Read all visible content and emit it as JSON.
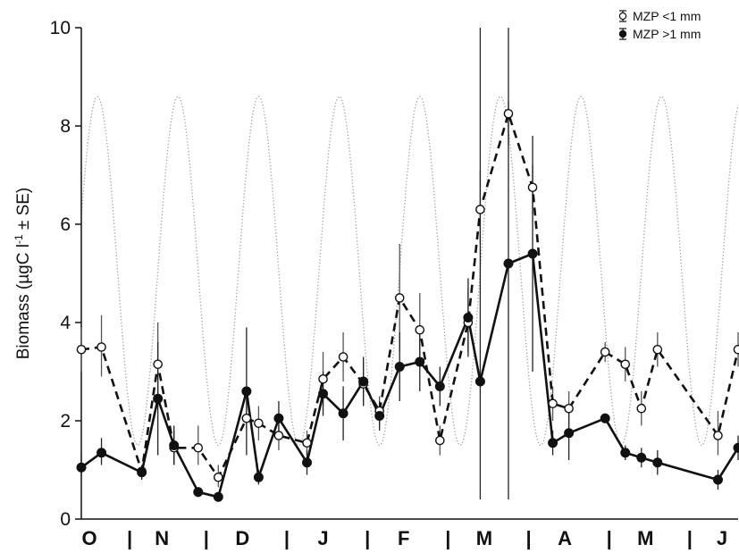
{
  "chart_data": {
    "type": "line",
    "ylabel_main": "Biomass (µgC l",
    "ylabel_sup": "-1",
    "ylabel_tail": " ± SE)",
    "ylim": [
      0,
      10
    ],
    "yticks": [
      "0",
      "2",
      "4",
      "6",
      "8",
      "10"
    ],
    "xlim": [
      0,
      8.15
    ],
    "month_labels": [
      {
        "label": "O",
        "x": 0.1
      },
      {
        "label": "N",
        "x": 1.0
      },
      {
        "label": "D",
        "x": 2.0
      },
      {
        "label": "J",
        "x": 3.0
      },
      {
        "label": "F",
        "x": 4.0
      },
      {
        "label": "M",
        "x": 5.0
      },
      {
        "label": "A",
        "x": 6.0
      },
      {
        "label": "M",
        "x": 7.0
      },
      {
        "label": "J",
        "x": 7.95
      }
    ],
    "separators": [
      "|",
      "|",
      "|",
      "|",
      "|",
      "|",
      "|",
      "|"
    ],
    "separator_x": [
      0.6,
      1.55,
      2.55,
      3.55,
      4.55,
      5.55,
      6.55,
      7.55
    ],
    "legend": {
      "position": "top-right",
      "items": [
        {
          "label": "MZP <1 mm",
          "marker": "open-circle",
          "line": "dashed"
        },
        {
          "label": "MZP >1 mm",
          "marker": "filled-circle",
          "line": "solid"
        }
      ]
    },
    "background_wave": {
      "style": "dotted",
      "color": "#9a9a9a",
      "min": 1.5,
      "max": 8.6,
      "period": 1.0,
      "peak_x": 0.2
    },
    "series": [
      {
        "name": "MZP <1 mm",
        "marker": "open-circle",
        "line": "dashed",
        "points": [
          {
            "x": 0.0,
            "y": 3.45,
            "lo": 3.0,
            "hi": 3.9
          },
          {
            "x": 0.25,
            "y": 3.5,
            "lo": 2.9,
            "hi": 4.15
          },
          {
            "x": 0.75,
            "y": 0.97,
            "lo": 0.85,
            "hi": 1.1
          },
          {
            "x": 0.95,
            "y": 3.15,
            "lo": 2.4,
            "hi": 4.0
          },
          {
            "x": 1.15,
            "y": 1.45,
            "lo": 1.1,
            "hi": 1.8
          },
          {
            "x": 1.45,
            "y": 1.45,
            "lo": 1.1,
            "hi": 1.9
          },
          {
            "x": 1.7,
            "y": 0.85,
            "lo": 0.65,
            "hi": 1.1
          },
          {
            "x": 2.05,
            "y": 2.05,
            "lo": 1.8,
            "hi": 2.3
          },
          {
            "x": 2.2,
            "y": 1.95,
            "lo": 1.6,
            "hi": 2.3
          },
          {
            "x": 2.45,
            "y": 1.7,
            "lo": 1.4,
            "hi": 2.0
          },
          {
            "x": 2.8,
            "y": 1.55,
            "lo": 1.3,
            "hi": 1.8
          },
          {
            "x": 3.0,
            "y": 2.85,
            "lo": 2.3,
            "hi": 3.4
          },
          {
            "x": 3.25,
            "y": 3.3,
            "lo": 2.8,
            "hi": 3.8
          },
          {
            "x": 3.5,
            "y": 2.75,
            "lo": 2.3,
            "hi": 3.2
          },
          {
            "x": 3.7,
            "y": 2.2,
            "lo": 1.9,
            "hi": 2.5
          },
          {
            "x": 3.95,
            "y": 4.5,
            "lo": 3.4,
            "hi": 5.6
          },
          {
            "x": 4.2,
            "y": 3.85,
            "lo": 3.2,
            "hi": 4.6
          },
          {
            "x": 4.45,
            "y": 1.6,
            "lo": 1.3,
            "hi": 1.9
          },
          {
            "x": 4.8,
            "y": 4.0,
            "lo": 3.4,
            "hi": 4.7
          },
          {
            "x": 4.95,
            "y": 6.3,
            "lo": 5.6,
            "hi": 7.1
          },
          {
            "x": 5.3,
            "y": 8.25,
            "lo": 7.6,
            "hi": 8.5
          },
          {
            "x": 5.6,
            "y": 6.75,
            "lo": 6.2,
            "hi": 7.2
          },
          {
            "x": 5.85,
            "y": 2.35,
            "lo": 2.0,
            "hi": 2.7
          },
          {
            "x": 6.05,
            "y": 2.25,
            "lo": 1.9,
            "hi": 2.6
          },
          {
            "x": 6.5,
            "y": 3.4,
            "lo": 3.2,
            "hi": 3.6
          },
          {
            "x": 6.75,
            "y": 3.15,
            "lo": 2.8,
            "hi": 3.5
          },
          {
            "x": 6.95,
            "y": 2.25,
            "lo": 1.9,
            "hi": 2.6
          },
          {
            "x": 7.15,
            "y": 3.45,
            "lo": 3.1,
            "hi": 3.8
          },
          {
            "x": 7.9,
            "y": 1.7,
            "lo": 1.3,
            "hi": 2.2
          },
          {
            "x": 8.15,
            "y": 3.45,
            "lo": 3.1,
            "hi": 3.8
          }
        ]
      },
      {
        "name": "MZP >1 mm",
        "marker": "filled-circle",
        "line": "solid",
        "points": [
          {
            "x": 0.0,
            "y": 1.05,
            "lo": 0.8,
            "hi": 1.35
          },
          {
            "x": 0.25,
            "y": 1.35,
            "lo": 1.1,
            "hi": 1.65
          },
          {
            "x": 0.75,
            "y": 0.95,
            "lo": 0.8,
            "hi": 1.1
          },
          {
            "x": 0.95,
            "y": 2.45,
            "lo": 1.3,
            "hi": 3.6
          },
          {
            "x": 1.15,
            "y": 1.5,
            "lo": 1.1,
            "hi": 1.9
          },
          {
            "x": 1.45,
            "y": 0.55,
            "lo": 0.45,
            "hi": 0.65
          },
          {
            "x": 1.7,
            "y": 0.45,
            "lo": 0.35,
            "hi": 0.55
          },
          {
            "x": 2.05,
            "y": 2.6,
            "lo": 1.3,
            "hi": 3.9
          },
          {
            "x": 2.2,
            "y": 0.85,
            "lo": 0.7,
            "hi": 1.0
          },
          {
            "x": 2.45,
            "y": 2.05,
            "lo": 1.7,
            "hi": 2.4
          },
          {
            "x": 2.8,
            "y": 1.15,
            "lo": 0.9,
            "hi": 1.4
          },
          {
            "x": 3.0,
            "y": 2.55,
            "lo": 2.1,
            "hi": 3.0
          },
          {
            "x": 3.25,
            "y": 2.15,
            "lo": 1.6,
            "hi": 2.7
          },
          {
            "x": 3.5,
            "y": 2.8,
            "lo": 2.3,
            "hi": 3.3
          },
          {
            "x": 3.7,
            "y": 2.1,
            "lo": 1.8,
            "hi": 2.4
          },
          {
            "x": 3.95,
            "y": 3.1,
            "lo": 2.4,
            "hi": 3.8
          },
          {
            "x": 4.2,
            "y": 3.2,
            "lo": 2.6,
            "hi": 3.9
          },
          {
            "x": 4.45,
            "y": 2.7,
            "lo": 2.3,
            "hi": 3.1
          },
          {
            "x": 4.8,
            "y": 4.1,
            "lo": 3.3,
            "hi": 4.9
          },
          {
            "x": 4.95,
            "y": 2.8,
            "lo": 0.4,
            "hi": 10.0
          },
          {
            "x": 5.3,
            "y": 5.2,
            "lo": 0.4,
            "hi": 10.0
          },
          {
            "x": 5.6,
            "y": 5.4,
            "lo": 3.0,
            "hi": 7.8
          },
          {
            "x": 5.85,
            "y": 1.55,
            "lo": 1.3,
            "hi": 1.8
          },
          {
            "x": 6.05,
            "y": 1.75,
            "lo": 1.2,
            "hi": 2.3
          },
          {
            "x": 6.5,
            "y": 2.05,
            "lo": 1.95,
            "hi": 2.15
          },
          {
            "x": 6.75,
            "y": 1.35,
            "lo": 1.2,
            "hi": 1.5
          },
          {
            "x": 6.95,
            "y": 1.25,
            "lo": 1.05,
            "hi": 1.45
          },
          {
            "x": 7.15,
            "y": 1.15,
            "lo": 0.9,
            "hi": 1.4
          },
          {
            "x": 7.9,
            "y": 0.8,
            "lo": 0.6,
            "hi": 1.0
          },
          {
            "x": 8.15,
            "y": 1.45,
            "lo": 1.2,
            "hi": 1.7
          }
        ]
      }
    ]
  }
}
